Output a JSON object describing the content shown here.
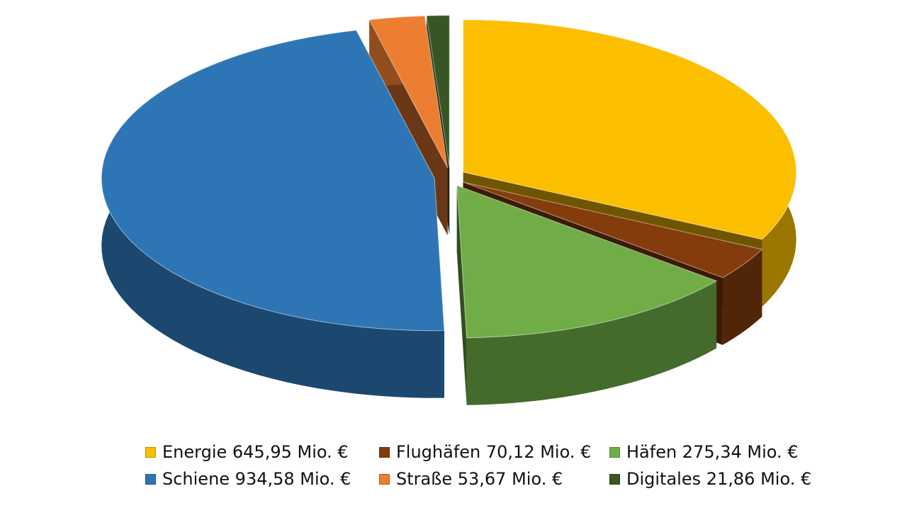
{
  "chart_data": {
    "type": "pie",
    "style": "3d-exploded",
    "unit": "Mio. €",
    "legend_position": "bottom",
    "slices": [
      {
        "name": "Energie",
        "value": 645.95,
        "label": "Energie 645,95 Mio. €",
        "color": "#FBBF00"
      },
      {
        "name": "Flughäfen",
        "value": 70.12,
        "label": "Flughäfen 70,12 Mio. €",
        "color": "#843C0C"
      },
      {
        "name": "Häfen",
        "value": 275.34,
        "label": "Häfen 275,34 Mio. €",
        "color": "#70AD47"
      },
      {
        "name": "Schiene",
        "value": 934.58,
        "label": "Schiene 934,58 Mio. €",
        "color": "#2E75B6"
      },
      {
        "name": "Straße",
        "value": 53.67,
        "label": "Straße 53,67 Mio. €",
        "color": "#ED7D31"
      },
      {
        "name": "Digitales",
        "value": 21.86,
        "label": "Digitales 21,86 Mio. €",
        "color": "#375623"
      }
    ]
  }
}
